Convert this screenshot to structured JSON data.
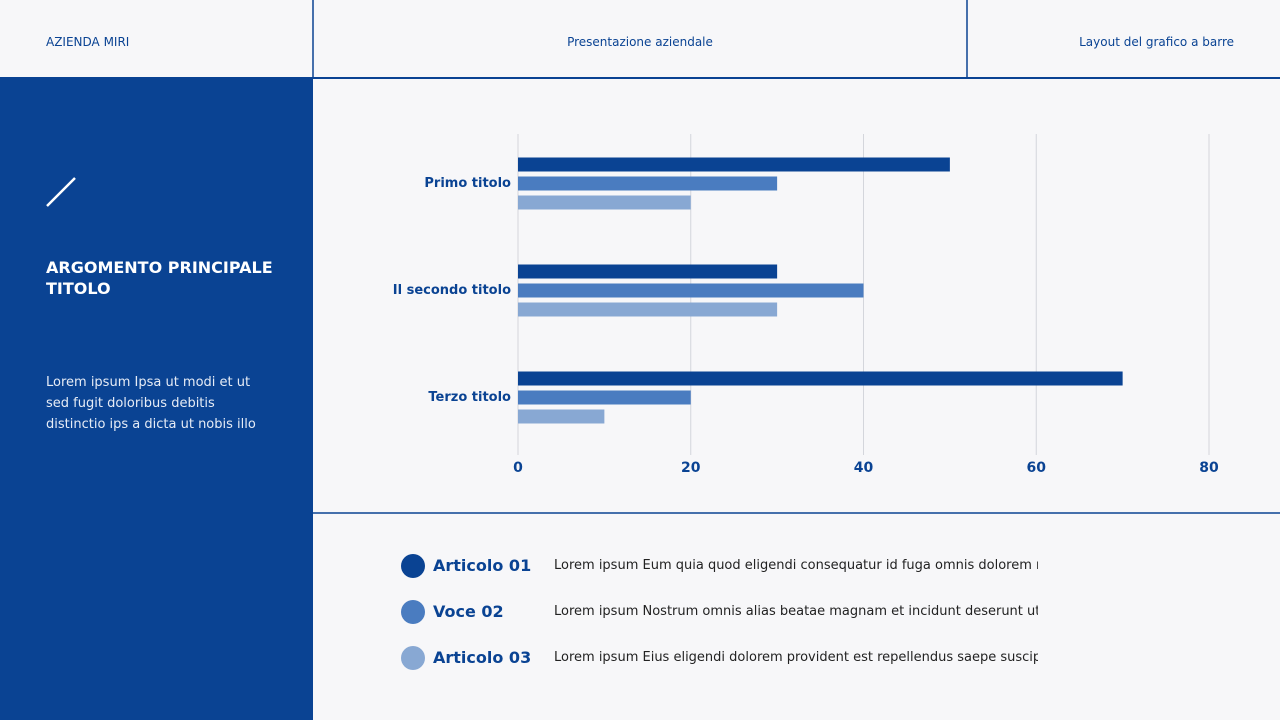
{
  "header": {
    "company": "AZIENDA MIRI",
    "presentation": "Presentazione aziendale",
    "layout": "Layout del grafico a barre"
  },
  "sidebar": {
    "title": "ARGOMENTO PRINCIPALE TITOLO",
    "body": "Lorem ipsum Ipsa ut modi et ut sed fugit doloribus debitis distinctio ips a dicta ut nobis illo enim similique n"
  },
  "chart_data": {
    "type": "bar",
    "orientation": "horizontal",
    "categories": [
      "Primo titolo",
      "Il secondo titolo",
      "Terzo titolo"
    ],
    "series": [
      {
        "name": "Articolo 01",
        "color": "#0a4393",
        "values": [
          50,
          30,
          70
        ]
      },
      {
        "name": "Voce 02",
        "color": "#4a7cc0",
        "values": [
          30,
          40,
          20
        ]
      },
      {
        "name": "Articolo 03",
        "color": "#88a8d3",
        "values": [
          20,
          30,
          10
        ]
      }
    ],
    "xlim": [
      0,
      80
    ],
    "xticks": [
      0,
      20,
      40,
      60,
      80
    ],
    "grid": true
  },
  "legend_descriptions": [
    "Lorem ipsum Eum quia quod eligendi consequatur id fuga omnis dolorem nobis",
    "Lorem ipsum Nostrum omnis alias beatae magnam et incidunt deserunt ut aliquam",
    "Lorem ipsum Eius eligendi dolorem provident est repellendus saepe suscipit sint"
  ]
}
